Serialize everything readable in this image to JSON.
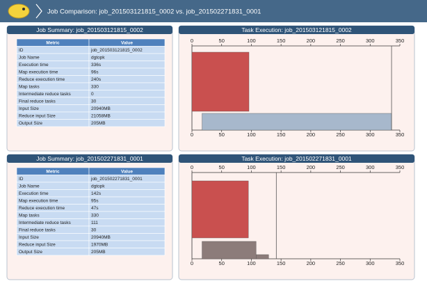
{
  "header": {
    "title": "Job Comparison: job_201503121815_0002 vs. job_201502271831_0001"
  },
  "panels": [
    {
      "title": "Job Summary: job_201503121815_0002",
      "columns": [
        "Metric",
        "Value"
      ],
      "rows": [
        [
          "ID",
          "job_201503121815_0002"
        ],
        [
          "Job Name",
          "dgtopk"
        ],
        [
          "Execution time",
          "336s"
        ],
        [
          "Map execution time",
          "96s"
        ],
        [
          "Reduce execution time",
          "240s"
        ],
        [
          "Map tasks",
          "330"
        ],
        [
          "Intermediate reduce tasks",
          "0"
        ],
        [
          "Final reduce tasks",
          "30"
        ],
        [
          "Input Size",
          "20940MB"
        ],
        [
          "Reduce input Size",
          "21058MB"
        ],
        [
          "Output Size",
          "205MB"
        ]
      ]
    },
    {
      "title": "Job Summary: job_201502271831_0001",
      "columns": [
        "Metric",
        "Value"
      ],
      "rows": [
        [
          "ID",
          "job_201502271831_0001"
        ],
        [
          "Job Name",
          "dgtopk"
        ],
        [
          "Execution time",
          "142s"
        ],
        [
          "Map execution time",
          "95s"
        ],
        [
          "Reduce execution time",
          "47s"
        ],
        [
          "Map tasks",
          "330"
        ],
        [
          "Intermediate reduce tasks",
          "111"
        ],
        [
          "Final reduce tasks",
          "30"
        ],
        [
          "Input Size",
          "20940MB"
        ],
        [
          "Reduce input Size",
          "1970MB"
        ],
        [
          "Output Size",
          "205MB"
        ]
      ]
    }
  ],
  "chart_data": [
    {
      "type": "range-bar",
      "title": "Task Execution: job_201503121815_0002",
      "xlim": [
        0,
        350
      ],
      "xticks": [
        0,
        50,
        100,
        150,
        200,
        250,
        300,
        350
      ],
      "bars": [
        {
          "start": 0,
          "end": 96,
          "color": "#c9504f"
        },
        {
          "start": 17,
          "end": 336,
          "color": "#a7b8cc"
        }
      ],
      "end_line": 336
    },
    {
      "type": "range-bar",
      "title": "Task Execution: job_201502271831_0001",
      "xlim": [
        0,
        350
      ],
      "xticks": [
        0,
        50,
        100,
        150,
        200,
        250,
        300,
        350
      ],
      "bars": [
        {
          "start": 0,
          "end": 95,
          "color": "#c9504f"
        },
        {
          "start": 17,
          "end": 108,
          "color": "#8c7c7a"
        },
        {
          "start": 108,
          "end": 129,
          "color": "#8c7c7a"
        }
      ],
      "end_line": 142
    }
  ]
}
